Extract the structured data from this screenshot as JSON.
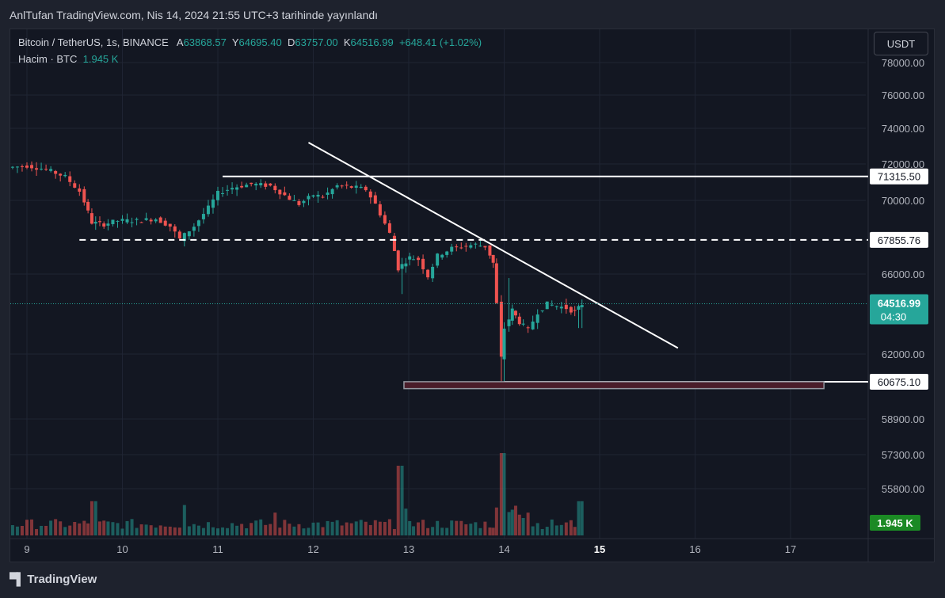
{
  "publish_text": "AnlTufan TradingView.com, Nis 14, 2024 21:55 UTC+3 tarihinde yayınlandı",
  "legend": {
    "symbol": "Bitcoin / TetherUS, 1s, BINANCE",
    "open_label": "A",
    "open": "63868.57",
    "high_label": "Y",
    "high": "64695.40",
    "low_label": "D",
    "low": "63757.00",
    "close_label": "K",
    "close": "64516.99",
    "change": "+648.41 (+1.02%)"
  },
  "volume_legend": {
    "label": "Hacim · BTC",
    "value": "1.945 K"
  },
  "currency_button": "USDT",
  "brand": "TradingView",
  "colors": {
    "up": "#26a69a",
    "down": "#ef5350",
    "background": "#131722",
    "grid": "#1f2433"
  },
  "chart_data": {
    "type": "candlestick",
    "x_ticks": [
      "9",
      "10",
      "11",
      "12",
      "13",
      "14",
      "15",
      "16",
      "17"
    ],
    "y_ticks": [
      "78000.00",
      "76000.00",
      "74000.00",
      "72000.00",
      "70000.00",
      "66000.00",
      "62000.00",
      "58900.00",
      "57300.00",
      "55800.00"
    ],
    "y_tick_values": [
      78000,
      76000,
      74000,
      72000,
      70000,
      66000,
      62000,
      58900,
      57300,
      55800
    ],
    "price_labels": [
      {
        "text": "71315.50",
        "value": 71315.5
      },
      {
        "text": "67855.76",
        "value": 67855.76
      },
      {
        "text": "60675.10",
        "value": 60675.1
      }
    ],
    "last_price": {
      "text": "64516.99",
      "countdown": "04:30",
      "value": 64516.99
    },
    "volume_label": "1.945 K",
    "horizontal_lines": [
      {
        "value": 71315.5,
        "style": "solid",
        "from_day": 11.05
      },
      {
        "value": 67855.76,
        "style": "dashed",
        "from_day": 9.55
      },
      {
        "value": 60675.1,
        "style": "solid",
        "from_day": 14.0
      }
    ],
    "trendline": {
      "start": [
        11.95,
        73200
      ],
      "end": [
        15.82,
        62300
      ]
    },
    "support_zone": {
      "from_day": 12.95,
      "to_day": 17.35,
      "top": 60680,
      "bottom": 60350
    },
    "anchors": [
      [
        8.85,
        71800
      ],
      [
        9.05,
        71900
      ],
      [
        9.25,
        71700
      ],
      [
        9.45,
        71300
      ],
      [
        9.6,
        70500
      ],
      [
        9.72,
        68800
      ],
      [
        9.85,
        68700
      ],
      [
        10.0,
        68900
      ],
      [
        10.2,
        68900
      ],
      [
        10.4,
        69000
      ],
      [
        10.55,
        68600
      ],
      [
        10.65,
        67900
      ],
      [
        10.8,
        68600
      ],
      [
        10.95,
        69600
      ],
      [
        11.05,
        70400
      ],
      [
        11.2,
        70700
      ],
      [
        11.4,
        70900
      ],
      [
        11.6,
        70800
      ],
      [
        11.8,
        70100
      ],
      [
        11.9,
        69800
      ],
      [
        12.05,
        70300
      ],
      [
        12.15,
        70200
      ],
      [
        12.3,
        70800
      ],
      [
        12.5,
        70700
      ],
      [
        12.6,
        70600
      ],
      [
        12.7,
        69800
      ],
      [
        12.85,
        68200
      ],
      [
        12.93,
        66300
      ],
      [
        13.05,
        66900
      ],
      [
        13.15,
        66800
      ],
      [
        13.25,
        65900
      ],
      [
        13.35,
        67000
      ],
      [
        13.5,
        67400
      ],
      [
        13.6,
        67500
      ],
      [
        13.75,
        67600
      ],
      [
        13.85,
        67500
      ],
      [
        13.92,
        66600
      ],
      [
        13.97,
        64500
      ],
      [
        14.0,
        61800
      ],
      [
        14.05,
        63300
      ],
      [
        14.12,
        64200
      ],
      [
        14.2,
        63600
      ],
      [
        14.3,
        63200
      ],
      [
        14.4,
        64100
      ],
      [
        14.5,
        64500
      ],
      [
        14.6,
        64400
      ],
      [
        14.7,
        64300
      ],
      [
        14.78,
        64100
      ],
      [
        14.85,
        64500
      ]
    ],
    "volume_peaks": [
      {
        "day": 12.9,
        "value": 0.55
      },
      {
        "day": 13.97,
        "value": 1.0
      },
      {
        "day": 14.0,
        "value": 0.65
      },
      {
        "day": 14.8,
        "value": 0.27
      },
      {
        "day": 9.7,
        "value": 0.27
      },
      {
        "day": 10.65,
        "value": 0.24
      },
      {
        "day": 11.6,
        "value": 0.18
      }
    ]
  }
}
